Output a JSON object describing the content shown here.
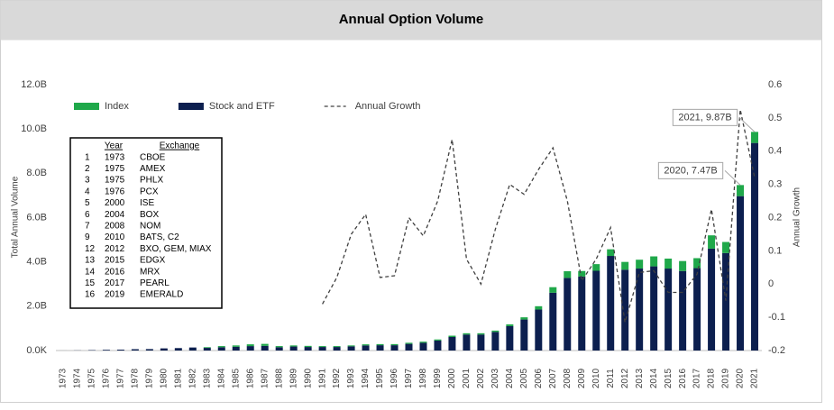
{
  "chart_data": {
    "type": "bar",
    "title": "Annual Option Volume",
    "y_label": "Total Annual Volume",
    "y2_label": "Annual Growth",
    "categories": [
      "1973",
      "1974",
      "1975",
      "1976",
      "1977",
      "1978",
      "1979",
      "1980",
      "1981",
      "1982",
      "1983",
      "1984",
      "1985",
      "1986",
      "1987",
      "1988",
      "1989",
      "1990",
      "1991",
      "1992",
      "1993",
      "1994",
      "1995",
      "1996",
      "1997",
      "1998",
      "1999",
      "2000",
      "2001",
      "2002",
      "2003",
      "2004",
      "2005",
      "2006",
      "2007",
      "2008",
      "2009",
      "2010",
      "2011",
      "2012",
      "2013",
      "2014",
      "2015",
      "2016",
      "2017",
      "2018",
      "2019",
      "2020",
      "2021"
    ],
    "series": [
      {
        "name": "Index",
        "color": "#1fa84a",
        "values": [
          0,
          0,
          0,
          0,
          0,
          0,
          0,
          0,
          0,
          0,
          0.03,
          0.05,
          0.06,
          0.08,
          0.09,
          0.05,
          0.05,
          0.05,
          0.04,
          0.04,
          0.04,
          0.05,
          0.05,
          0.05,
          0.05,
          0.05,
          0.05,
          0.06,
          0.06,
          0.06,
          0.06,
          0.08,
          0.1,
          0.15,
          0.25,
          0.3,
          0.25,
          0.3,
          0.3,
          0.35,
          0.4,
          0.45,
          0.45,
          0.45,
          0.45,
          0.6,
          0.5,
          0.5,
          0.5
        ]
      },
      {
        "name": "Stock and ETF",
        "color": "#0c1f4f",
        "values": [
          0.001,
          0.006,
          0.018,
          0.032,
          0.04,
          0.06,
          0.065,
          0.097,
          0.11,
          0.137,
          0.12,
          0.15,
          0.17,
          0.2,
          0.21,
          0.15,
          0.18,
          0.16,
          0.16,
          0.16,
          0.19,
          0.23,
          0.24,
          0.24,
          0.3,
          0.35,
          0.45,
          0.61,
          0.72,
          0.72,
          0.84,
          1.1,
          1.4,
          1.85,
          2.61,
          3.28,
          3.34,
          3.6,
          4.27,
          3.65,
          3.7,
          3.8,
          3.7,
          3.59,
          3.72,
          4.6,
          4.4,
          6.97,
          9.37
        ]
      },
      {
        "name": "Annual Growth",
        "type": "line",
        "axis": "y2",
        "color": "#404040",
        "dash": "dashed",
        "values": [
          null,
          null,
          null,
          null,
          null,
          null,
          null,
          null,
          null,
          null,
          null,
          null,
          null,
          null,
          null,
          null,
          null,
          null,
          -0.06,
          0.02,
          0.15,
          0.21,
          0.02,
          0.025,
          0.2,
          0.145,
          0.25,
          0.435,
          0.075,
          0,
          0.165,
          0.3,
          0.27,
          0.345,
          0.41,
          0.25,
          0.01,
          0.075,
          0.17,
          -0.115,
          0.035,
          0.04,
          -0.025,
          -0.025,
          0.03,
          0.225,
          -0.05,
          0.525,
          0.32
        ]
      }
    ],
    "ylim": [
      0,
      12
    ],
    "yticks": [
      {
        "value": 0,
        "label": "0.0K"
      },
      {
        "value": 2,
        "label": "2.0B"
      },
      {
        "value": 4,
        "label": "4.0B"
      },
      {
        "value": 6,
        "label": "6.0B"
      },
      {
        "value": 8,
        "label": "8.0B"
      },
      {
        "value": 10,
        "label": "10.0B"
      },
      {
        "value": 12,
        "label": "12.0B"
      }
    ],
    "y2lim": [
      -0.2,
      0.6
    ],
    "y2ticks": [
      -0.2,
      -0.1,
      0,
      0.1,
      0.2,
      0.3,
      0.4,
      0.5,
      0.6
    ],
    "grid": false,
    "legend": "top-left",
    "annotations": [
      {
        "text": "2021, 9.87B",
        "x": "2021",
        "y": 9.87
      },
      {
        "text": "2020, 7.47B",
        "x": "2020",
        "y": 7.47
      }
    ],
    "table": {
      "columns": [
        "Year",
        "Exchange"
      ],
      "rows": [
        [
          "1",
          "1973",
          "CBOE"
        ],
        [
          "2",
          "1975",
          "AMEX"
        ],
        [
          "3",
          "1975",
          "PHLX"
        ],
        [
          "4",
          "1976",
          "PCX"
        ],
        [
          "5",
          "2000",
          "ISE"
        ],
        [
          "6",
          "2004",
          "BOX"
        ],
        [
          "7",
          "2008",
          "NOM"
        ],
        [
          "9",
          "2010",
          "BATS, C2"
        ],
        [
          "12",
          "2012",
          "BXO, GEM, MIAX"
        ],
        [
          "13",
          "2015",
          "EDGX"
        ],
        [
          "14",
          "2016",
          "MRX"
        ],
        [
          "15",
          "2017",
          "PEARL"
        ],
        [
          "16",
          "2019",
          "EMERALD"
        ]
      ]
    }
  }
}
